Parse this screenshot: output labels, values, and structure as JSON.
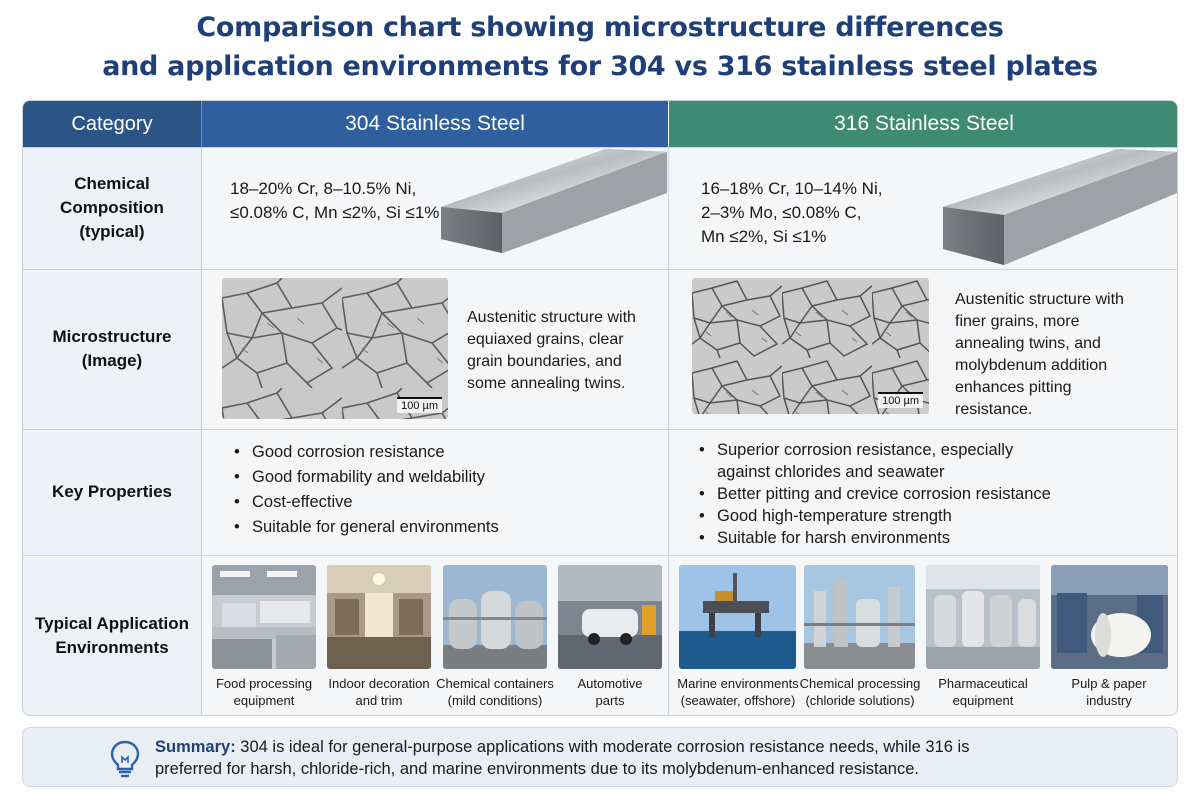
{
  "title": {
    "line1": "Comparison chart showing microstructure differences",
    "line2": "and application environments for 304 vs 316 stainless steel plates"
  },
  "header": {
    "category": "Category",
    "col304": "304 Stainless Steel",
    "col316": "316 Stainless Steel"
  },
  "rows": {
    "composition": {
      "label_lines": [
        "Chemical",
        "Composition",
        "(typical)"
      ],
      "s304_lines": [
        "18–20% Cr, 8–10.5% Ni,",
        "≤0.08% C, Mn ≤2%, Si ≤1%"
      ],
      "s316_lines": [
        "16–18% Cr, 10–14% Ni,",
        "2–3% Mo, ≤0.08% C,",
        "Mn ≤2%, Si ≤1%"
      ]
    },
    "microstructure": {
      "label_lines": [
        "Microstructure",
        "(Image)"
      ],
      "scale_304": "100 µm",
      "scale_316": "100 µm",
      "s304_lines": [
        "Austenitic structure with",
        "equiaxed grains, clear",
        "grain boundaries, and",
        "some annealing twins."
      ],
      "s316_lines": [
        "Austenitic structure with",
        "finer grains, more",
        "annealing twins, and",
        "molybdenum addition",
        "enhances pitting",
        "resistance."
      ]
    },
    "properties": {
      "label": "Key Properties",
      "s304": [
        "Good corrosion resistance",
        "Good formability and weldability",
        "Cost-effective",
        "Suitable for general environments"
      ],
      "s316": [
        [
          "Superior corrosion resistance, especially",
          "against chlorides and seawater"
        ],
        [
          "Better pitting and crevice corrosion resistance"
        ],
        [
          "Good high-temperature strength"
        ],
        [
          "Suitable for harsh environments"
        ]
      ]
    },
    "applications": {
      "label_lines": [
        "Typical Application",
        "Environments"
      ],
      "s304": [
        {
          "icon": "kitchen-photo",
          "caption_lines": [
            "Food processing",
            "equipment"
          ]
        },
        {
          "icon": "interior-photo",
          "caption_lines": [
            "Indoor decoration",
            "and trim"
          ]
        },
        {
          "icon": "tanks-photo",
          "caption_lines": [
            "Chemical containers",
            "(mild conditions)"
          ]
        },
        {
          "icon": "car-factory-photo",
          "caption_lines": [
            "Automotive",
            "parts"
          ]
        }
      ],
      "s316": [
        {
          "icon": "offshore-platform-photo",
          "caption_lines": [
            "Marine environments",
            "(seawater, offshore)"
          ]
        },
        {
          "icon": "chemical-plant-photo",
          "caption_lines": [
            "Chemical processing",
            "(chloride solutions)"
          ]
        },
        {
          "icon": "pharma-photo",
          "caption_lines": [
            "Pharmaceutical",
            "equipment"
          ]
        },
        {
          "icon": "paper-mill-photo",
          "caption_lines": [
            "Pulp & paper",
            "industry"
          ]
        }
      ]
    }
  },
  "summary": {
    "icon": "lightbulb-icon",
    "label": "Summary:",
    "line1": " 304 is ideal for general-purpose applications with moderate corrosion resistance needs, while 316 is",
    "line2": "preferred for harsh, chloride-rich, and marine environments due to its molybdenum-enhanced resistance."
  },
  "colors": {
    "title": "#1f3f78",
    "header_category": "#2d5486",
    "header_304": "#2f5f9e",
    "header_316": "#3f8a73"
  }
}
